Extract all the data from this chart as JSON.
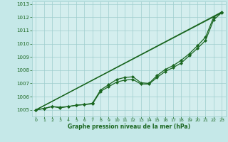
{
  "background_color": "#c5e8e8",
  "plot_bg_color": "#d4eeee",
  "grid_color": "#9ecece",
  "line_color": "#1a6620",
  "xlabel": "Graphe pression niveau de la mer (hPa)",
  "ylim": [
    1004.5,
    1013.2
  ],
  "xlim": [
    -0.5,
    23.5
  ],
  "yticks": [
    1005,
    1006,
    1007,
    1008,
    1009,
    1010,
    1011,
    1012,
    1013
  ],
  "xticks": [
    0,
    1,
    2,
    3,
    4,
    5,
    6,
    7,
    8,
    9,
    10,
    11,
    12,
    13,
    14,
    15,
    16,
    17,
    18,
    19,
    20,
    21,
    22,
    23
  ],
  "series1_x": [
    0,
    1,
    2,
    3,
    4,
    5,
    6,
    7,
    8,
    9,
    10,
    11,
    12,
    13,
    14,
    15,
    16,
    17,
    18,
    19,
    20,
    21,
    22,
    23
  ],
  "series1_y": [
    1005.0,
    1005.1,
    1005.25,
    1005.2,
    1005.25,
    1005.35,
    1005.4,
    1005.5,
    1006.5,
    1006.9,
    1007.3,
    1007.45,
    1007.5,
    1007.05,
    1007.0,
    1007.6,
    1008.05,
    1008.35,
    1008.75,
    1009.25,
    1009.85,
    1010.5,
    1012.0,
    1012.4
  ],
  "series2_x": [
    0,
    1,
    2,
    3,
    4,
    5,
    6,
    7,
    8,
    9,
    10,
    11,
    12,
    13,
    14,
    15,
    16,
    17,
    18,
    19,
    20,
    21,
    22,
    23
  ],
  "series2_y": [
    1005.0,
    1005.1,
    1005.25,
    1005.15,
    1005.25,
    1005.35,
    1005.4,
    1005.45,
    1006.4,
    1006.75,
    1007.1,
    1007.25,
    1007.3,
    1006.95,
    1006.95,
    1007.45,
    1007.9,
    1008.2,
    1008.55,
    1009.1,
    1009.65,
    1010.25,
    1011.8,
    1012.35
  ],
  "series3_x": [
    0,
    23
  ],
  "series3_y": [
    1005.0,
    1012.4
  ],
  "series4_x": [
    0,
    23
  ],
  "series4_y": [
    1005.0,
    1012.35
  ],
  "marker_style": "D",
  "marker_size": 2.0,
  "line_width": 0.9
}
